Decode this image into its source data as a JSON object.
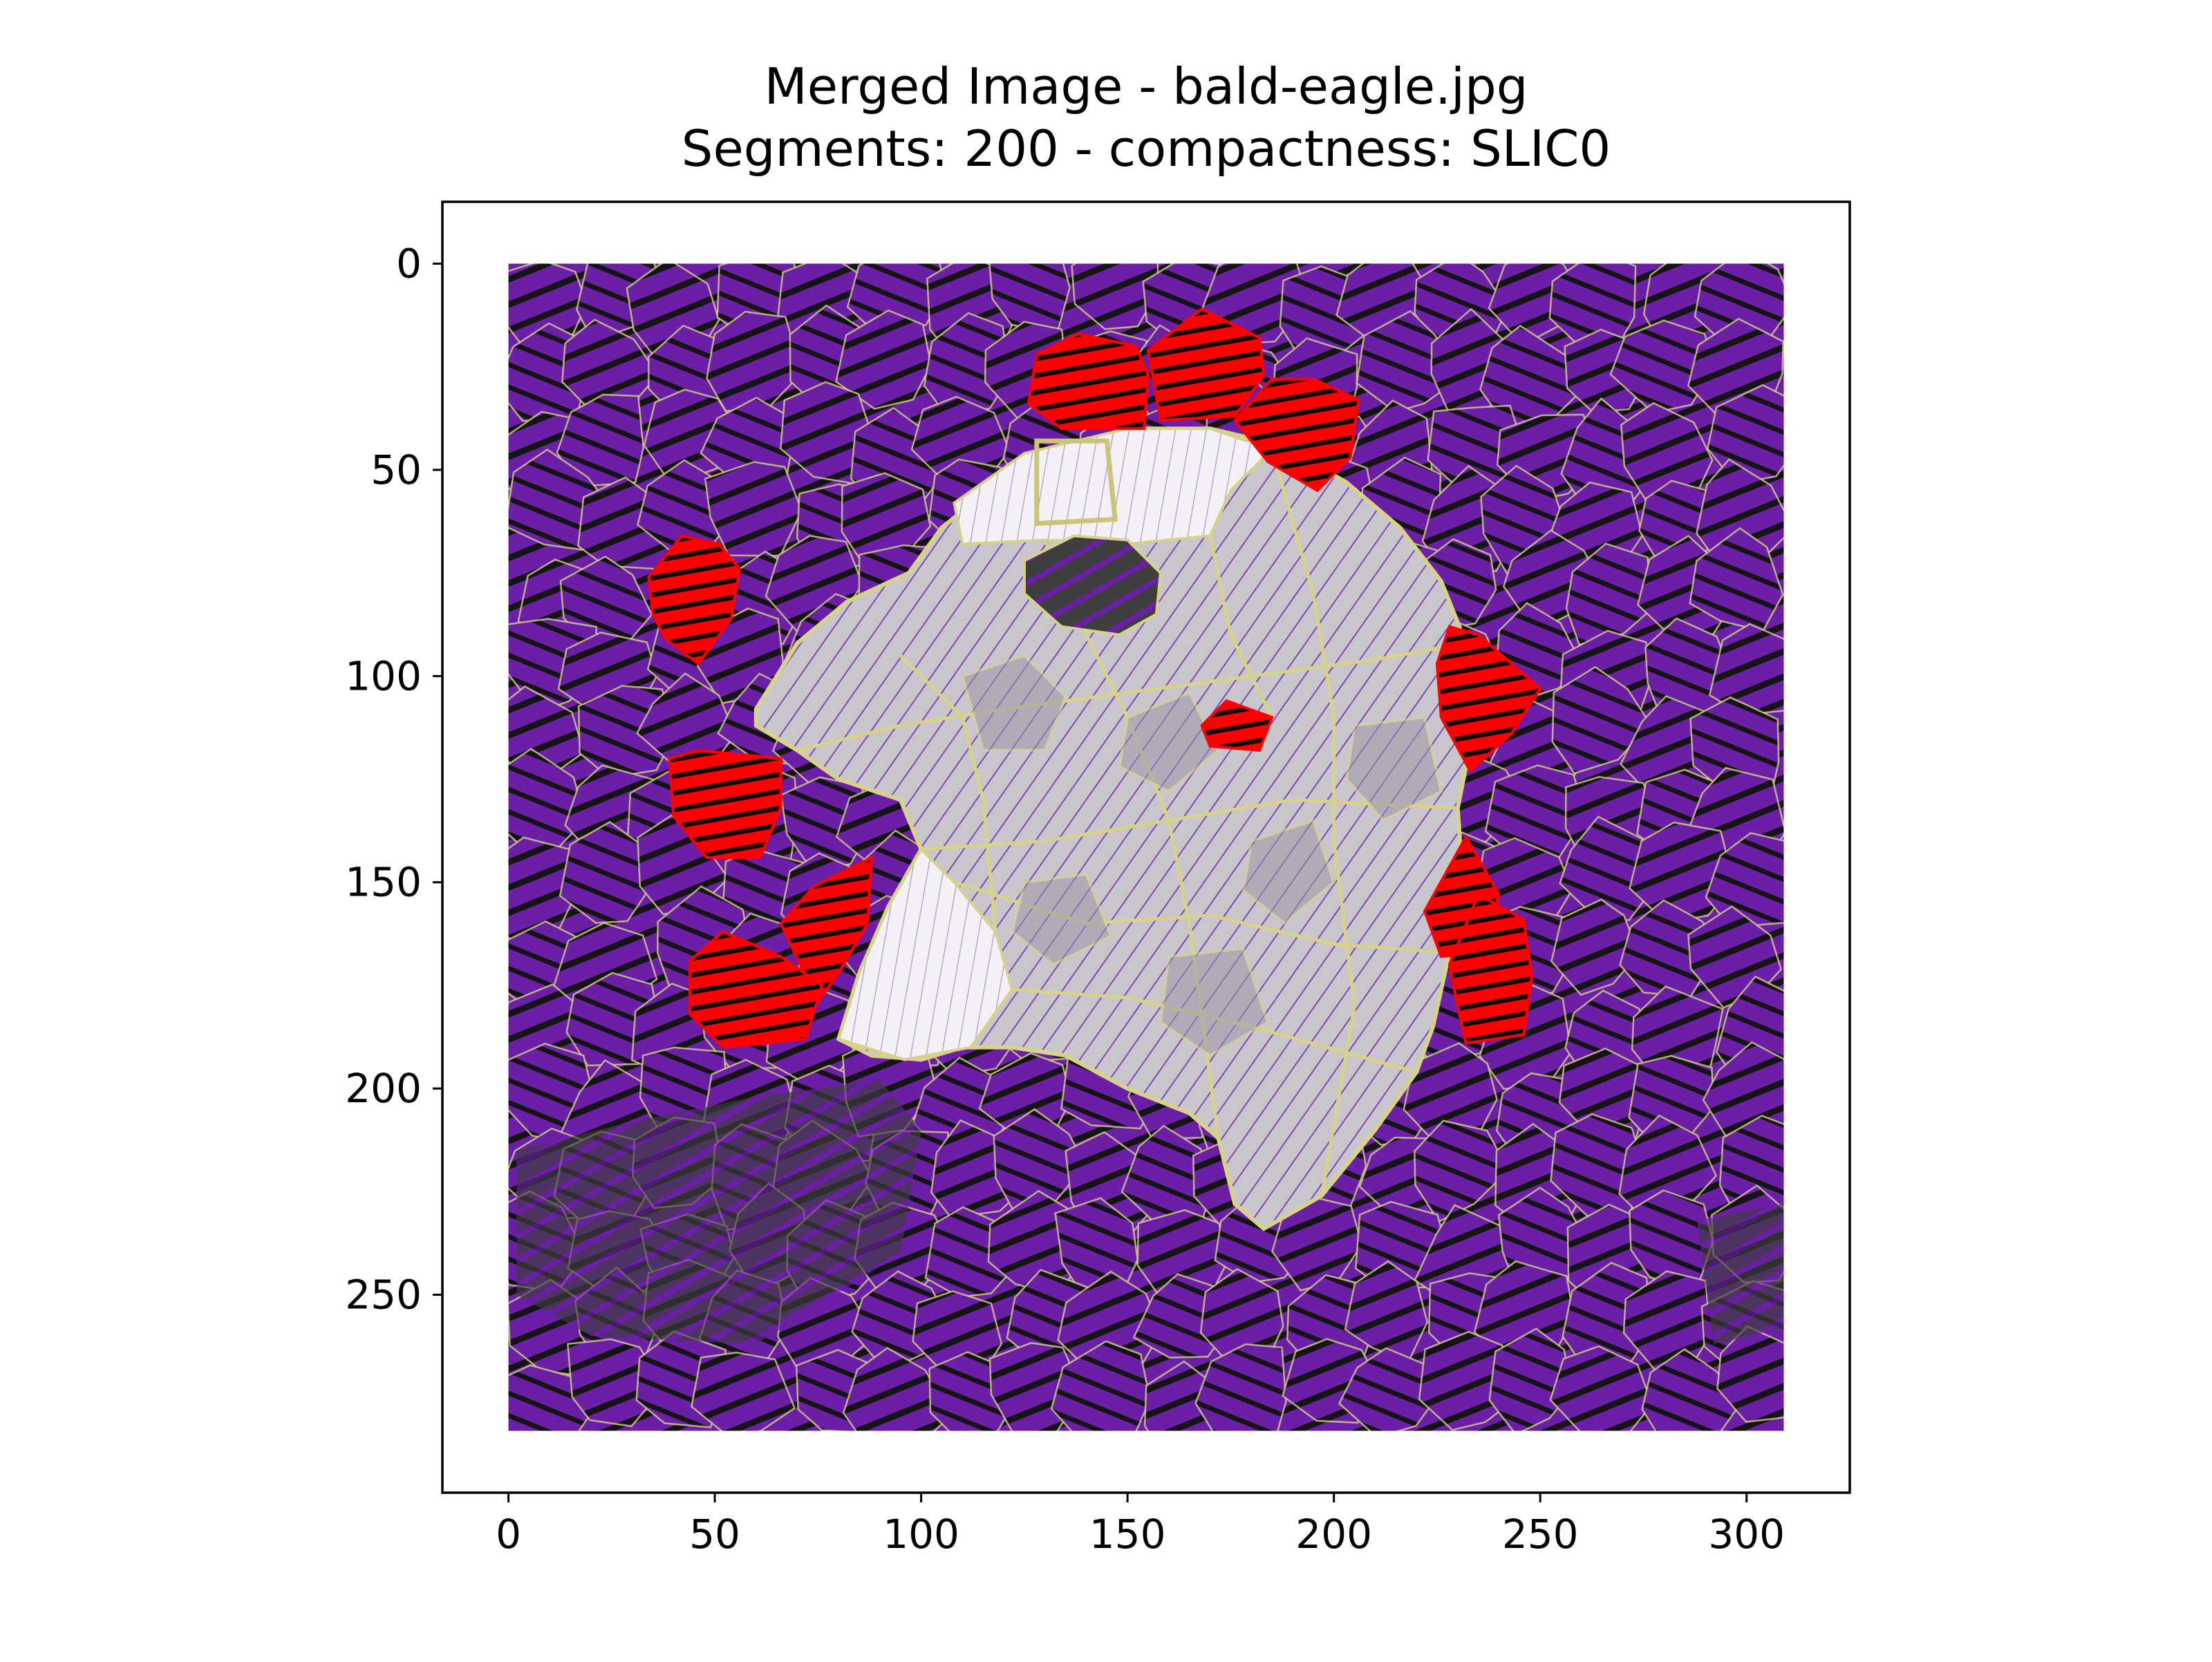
{
  "chart_data": {
    "type": "image",
    "title_lines": [
      "Merged Image - bald-eagle.jpg",
      "Segments: 200 - compactness: SLIC0"
    ],
    "xlabel": "",
    "ylabel": "",
    "image_extent": {
      "x": [
        0,
        309
      ],
      "y": [
        0,
        283
      ]
    },
    "xlim": [
      -16,
      325
    ],
    "ylim": [
      298,
      -15
    ],
    "x_ticks": [
      0,
      50,
      100,
      150,
      200,
      250,
      300
    ],
    "y_ticks": [
      0,
      50,
      100,
      150,
      200,
      250
    ],
    "grid": false,
    "legend": "none",
    "colors": {
      "background_segments": "#6a1fa6",
      "background_dark": "#141414",
      "segment_boundary": "#d6d28a",
      "eagle_light": "#c8c4cc",
      "eagle_white": "#f3f1f6",
      "highlight_segments": "#ff0000",
      "darker_ground": "#3e3e3e"
    },
    "regions": {
      "eagle_outline": [
        [
          60,
          108
        ],
        [
          70,
          92
        ],
        [
          82,
          82
        ],
        [
          97,
          75
        ],
        [
          105,
          64
        ],
        [
          115,
          56
        ],
        [
          130,
          46
        ],
        [
          150,
          40
        ],
        [
          170,
          40
        ],
        [
          187,
          44
        ],
        [
          203,
          53
        ],
        [
          216,
          64
        ],
        [
          226,
          77
        ],
        [
          232,
          92
        ],
        [
          234,
          108
        ],
        [
          232,
          122
        ],
        [
          230,
          132
        ],
        [
          231,
          147
        ],
        [
          228,
          167
        ],
        [
          224,
          185
        ],
        [
          220,
          196
        ],
        [
          210,
          210
        ],
        [
          197,
          226
        ],
        [
          183,
          234
        ],
        [
          176,
          228
        ],
        [
          172,
          212
        ],
        [
          165,
          206
        ],
        [
          150,
          200
        ],
        [
          135,
          192
        ],
        [
          122,
          190
        ],
        [
          110,
          190
        ],
        [
          100,
          193
        ],
        [
          88,
          192
        ],
        [
          80,
          188
        ],
        [
          85,
          172
        ],
        [
          92,
          156
        ],
        [
          100,
          142
        ],
        [
          95,
          130
        ],
        [
          80,
          125
        ],
        [
          70,
          118
        ],
        [
          60,
          112
        ]
      ],
      "eagle_head_white": [
        [
          108,
          58
        ],
        [
          125,
          46
        ],
        [
          150,
          40
        ],
        [
          170,
          40
        ],
        [
          185,
          45
        ],
        [
          175,
          55
        ],
        [
          170,
          66
        ],
        [
          150,
          68
        ],
        [
          130,
          67
        ],
        [
          110,
          68
        ]
      ],
      "eagle_eye_patch": [
        [
          125,
          72
        ],
        [
          137,
          66
        ],
        [
          150,
          67
        ],
        [
          158,
          75
        ],
        [
          157,
          85
        ],
        [
          148,
          90
        ],
        [
          134,
          88
        ],
        [
          125,
          80
        ]
      ],
      "eagle_body_white_patch": [
        [
          80,
          188
        ],
        [
          85,
          172
        ],
        [
          92,
          156
        ],
        [
          100,
          142
        ],
        [
          108,
          150
        ],
        [
          118,
          162
        ],
        [
          122,
          176
        ],
        [
          112,
          190
        ],
        [
          96,
          193
        ]
      ],
      "red_highlights": [
        [
          [
            128,
            22
          ],
          [
            138,
            17
          ],
          [
            152,
            20
          ],
          [
            155,
            27
          ],
          [
            154,
            40
          ],
          [
            134,
            40
          ],
          [
            126,
            34
          ]
        ],
        [
          [
            155,
            21
          ],
          [
            168,
            11
          ],
          [
            182,
            18
          ],
          [
            183,
            27
          ],
          [
            176,
            37
          ],
          [
            158,
            38
          ]
        ],
        [
          [
            176,
            38
          ],
          [
            185,
            28
          ],
          [
            195,
            28
          ],
          [
            206,
            33
          ],
          [
            204,
            47
          ],
          [
            196,
            55
          ],
          [
            184,
            48
          ]
        ],
        [
          [
            34,
            76
          ],
          [
            42,
            66
          ],
          [
            51,
            68
          ],
          [
            56,
            74
          ],
          [
            54,
            86
          ],
          [
            46,
            97
          ],
          [
            38,
            91
          ],
          [
            35,
            85
          ]
        ],
        [
          [
            39,
            120
          ],
          [
            46,
            118
          ],
          [
            66,
            120
          ],
          [
            66,
            132
          ],
          [
            61,
            144
          ],
          [
            48,
            144
          ],
          [
            40,
            134
          ]
        ],
        [
          [
            66,
            160
          ],
          [
            74,
            151
          ],
          [
            88,
            144
          ],
          [
            87,
            160
          ],
          [
            80,
            172
          ],
          [
            75,
            179
          ]
        ],
        [
          [
            44,
            169
          ],
          [
            52,
            162
          ],
          [
            66,
            168
          ],
          [
            76,
            175
          ],
          [
            72,
            188
          ],
          [
            52,
            190
          ],
          [
            44,
            182
          ]
        ],
        [
          [
            228,
            88
          ],
          [
            235,
            90
          ],
          [
            250,
            103
          ],
          [
            243,
            114
          ],
          [
            233,
            123
          ],
          [
            226,
            110
          ],
          [
            225,
            97
          ]
        ],
        [
          [
            232,
            139
          ],
          [
            240,
            153
          ],
          [
            236,
            167
          ],
          [
            226,
            168
          ],
          [
            222,
            157
          ]
        ],
        [
          [
            235,
            153
          ],
          [
            246,
            159
          ],
          [
            248,
            173
          ],
          [
            246,
            187
          ],
          [
            232,
            189
          ],
          [
            230,
            180
          ],
          [
            228,
            170
          ]
        ],
        [
          [
            168,
            112
          ],
          [
            174,
            106
          ],
          [
            185,
            110
          ],
          [
            182,
            118
          ],
          [
            170,
            117
          ]
        ]
      ],
      "highlighted_box": [
        [
          128,
          43
        ],
        [
          145,
          43
        ],
        [
          147,
          62
        ],
        [
          128,
          63
        ]
      ],
      "dark_ground_patches": [
        [
          [
            2,
            215
          ],
          [
            30,
            208
          ],
          [
            60,
            202
          ],
          [
            90,
            198
          ],
          [
            100,
            210
          ],
          [
            95,
            240
          ],
          [
            60,
            262
          ],
          [
            20,
            260
          ],
          [
            2,
            250
          ]
        ],
        [
          [
            288,
            232
          ],
          [
            309,
            228
          ],
          [
            309,
            258
          ],
          [
            292,
            262
          ]
        ]
      ]
    }
  }
}
